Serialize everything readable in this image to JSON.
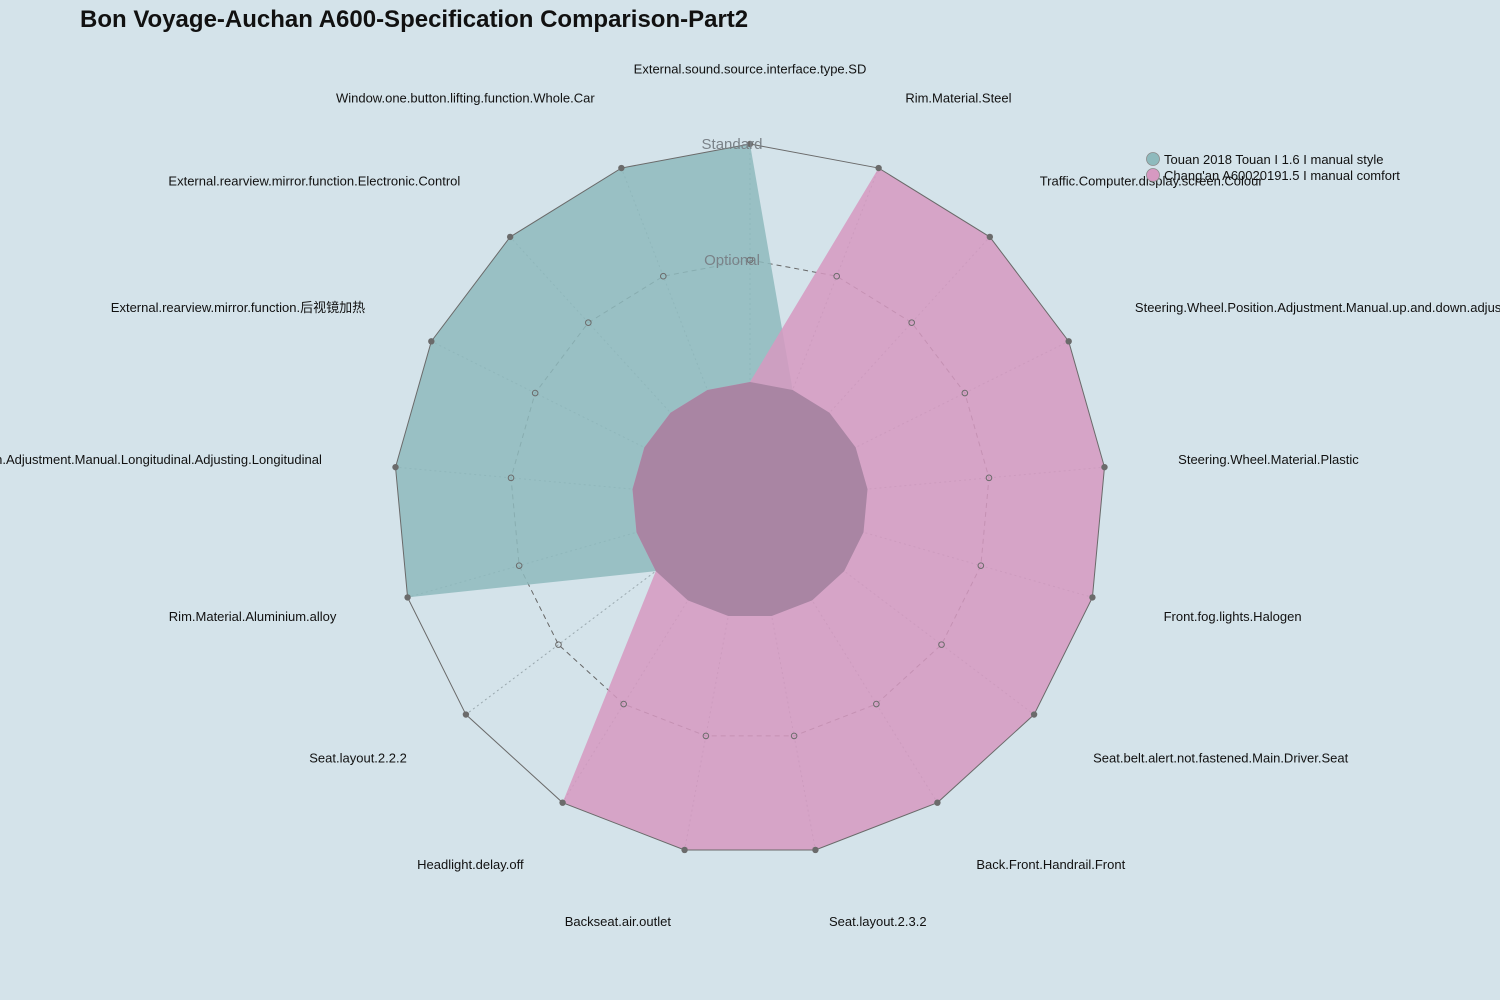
{
  "chart_data": {
    "type": "radar",
    "title": "Bon Voyage-Auchan A600-Specification Comparison-Part2",
    "levels": [
      "Optional",
      "Standard"
    ],
    "axes": [
      "External.sound.source.interface.type.SD",
      "Rim.Material.Steel",
      "Traffic.Computer.display.screen.Colour",
      "Steering.Wheel.Position.Adjustment.Manual.up.and.down.adjustment",
      "Steering.Wheel.Material.Plastic",
      "Front.fog.lights.Halogen",
      "Seat.belt.alert.not.fastened.Main.Driver.Seat",
      "Back.Front.Handrail.Front",
      "Seat.layout.2.3.2",
      "Backseat.air.outlet",
      "Headlight.delay.off",
      "Seat.layout.2.2.2",
      "Rim.Material.Aluminium.alloy",
      "Steering.Wheel.Position.Adjustment.Manual.Longitudinal.Adjusting.Longitudinal",
      "External.rearview.mirror.function.后视镜加热",
      "External.rearview.mirror.function.Electronic.Control",
      "Window.one.button.lifting.function.Whole.Car"
    ],
    "series": [
      {
        "name": "Touan 2018 Touan I 1.6 I manual style",
        "color": "#8ebabd",
        "values": [
          2,
          0,
          0,
          0,
          0,
          0,
          0,
          0,
          0,
          0,
          0,
          0,
          2,
          2,
          2,
          2,
          2
        ]
      },
      {
        "name": "Chang'an A60020191.5 I manual comfort",
        "color": "#d699c1",
        "values": [
          0,
          2,
          2,
          2,
          2,
          2,
          2,
          2,
          2,
          2,
          2,
          0,
          0,
          0,
          0,
          0,
          0
        ]
      }
    ],
    "legend_position": "top-right"
  }
}
